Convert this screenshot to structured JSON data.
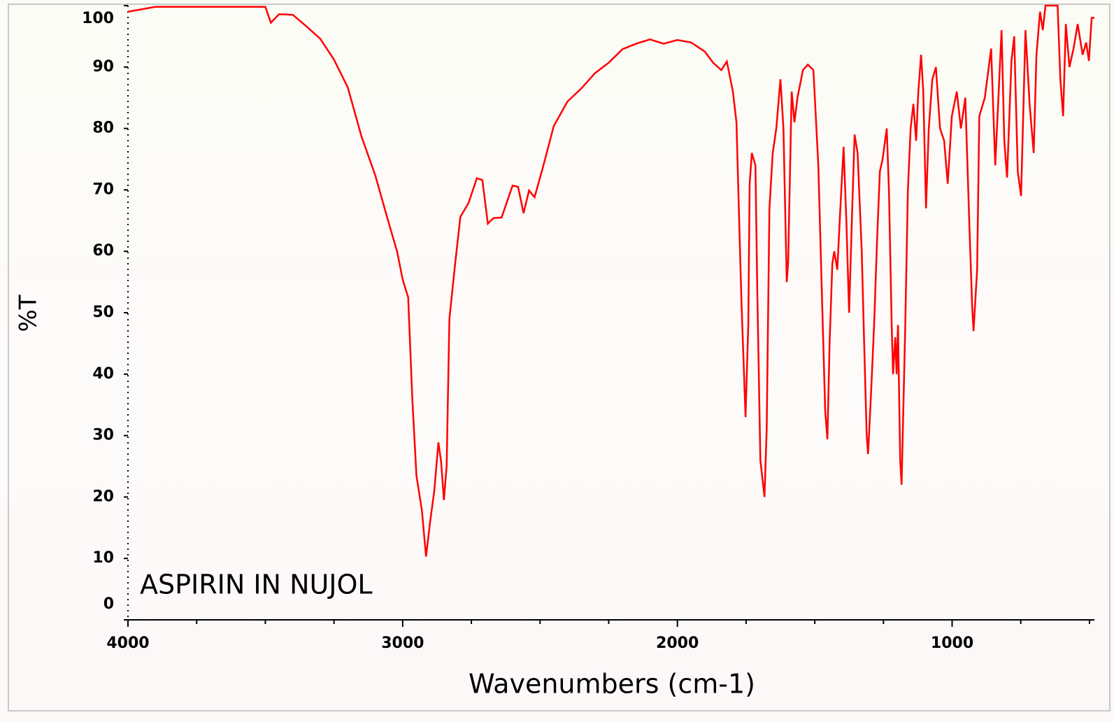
{
  "chart_data": {
    "type": "line",
    "annotation": "ASPIRIN IN NUJOL",
    "x_label": "Wavenumbers (cm-1)",
    "y_label": "%T",
    "xlim": [
      4000,
      482
    ],
    "ylim": [
      0,
      100
    ],
    "xticks": [
      4000,
      3000,
      2000,
      1000
    ],
    "xminorticks": [
      3750,
      3500,
      3250,
      2750,
      2500,
      2250,
      1750,
      1500,
      1250,
      750,
      500
    ],
    "yticks": [
      0,
      10,
      20,
      30,
      40,
      50,
      60,
      70,
      80,
      90,
      100
    ],
    "series": [
      {
        "color": "#ff0000",
        "x": [
          4000,
          3900,
          3500,
          3480,
          3450,
          3400,
          3350,
          3300,
          3250,
          3200,
          3150,
          3100,
          3050,
          3020,
          3000,
          2980,
          2965,
          2950,
          2930,
          2915,
          2900,
          2885,
          2870,
          2860,
          2850,
          2840,
          2830,
          2810,
          2790,
          2760,
          2730,
          2710,
          2690,
          2670,
          2640,
          2600,
          2580,
          2560,
          2540,
          2520,
          2490,
          2450,
          2400,
          2350,
          2300,
          2250,
          2200,
          2150,
          2100,
          2050,
          2000,
          1950,
          1900,
          1870,
          1840,
          1820,
          1798,
          1785,
          1777,
          1767,
          1752,
          1742,
          1737,
          1729,
          1716,
          1709,
          1698,
          1683,
          1675,
          1665,
          1653,
          1640,
          1625,
          1614,
          1602,
          1597,
          1584,
          1574,
          1563,
          1543,
          1525,
          1505,
          1487,
          1474,
          1462,
          1454,
          1446,
          1436,
          1429,
          1418,
          1408,
          1395,
          1385,
          1375,
          1365,
          1355,
          1344,
          1329,
          1322,
          1311,
          1306,
          1296,
          1284,
          1273,
          1263,
          1253,
          1238,
          1230,
          1220,
          1215,
          1207,
          1202,
          1197,
          1189,
          1184,
          1171,
          1161,
          1151,
          1141,
          1131,
          1123,
          1113,
          1105,
          1095,
          1085,
          1072,
          1059,
          1044,
          1029,
          1016,
          1001,
          983,
          968,
          952,
          937,
          927,
          922,
          909,
          901,
          881,
          858,
          843,
          820,
          810,
          800,
          784,
          774,
          761,
          749,
          733,
          718,
          703,
          693,
          680,
          670,
          660,
          616,
          606,
          596,
          586,
          573,
          558,
          543,
          525,
          512,
          502,
          492,
          482
        ],
        "values": [
          99,
          99.8,
          99.8,
          97.2,
          98.6,
          98.5,
          96.6,
          94.6,
          91.2,
          86.7,
          78.7,
          72.4,
          64.5,
          59.9,
          55.4,
          52.5,
          36,
          23.5,
          17.8,
          10.3,
          16,
          21,
          28.9,
          25.7,
          19.5,
          25,
          49,
          57.6,
          65.6,
          67.9,
          71.9,
          71.6,
          64.5,
          65.4,
          65.5,
          70.7,
          70.5,
          66.2,
          69.9,
          68.8,
          73.6,
          80.4,
          84.4,
          86.5,
          89,
          90.7,
          92.9,
          93.8,
          94.5,
          93.8,
          94.4,
          94,
          92.5,
          90.7,
          89.5,
          90.9,
          86,
          81,
          68,
          52,
          33,
          48,
          71,
          76,
          74,
          53,
          26,
          20,
          31,
          67,
          76,
          80,
          88,
          80,
          55,
          58,
          86,
          81,
          85,
          89.5,
          90.4,
          89.5,
          74,
          53,
          34,
          29.4,
          45,
          58,
          60,
          57,
          66,
          77,
          65,
          50,
          65,
          79,
          76,
          60,
          48,
          30,
          27,
          36,
          48,
          62,
          73,
          75,
          80,
          70,
          48,
          40,
          46,
          40,
          48,
          26,
          22,
          47,
          70,
          80,
          84,
          78,
          86,
          92,
          86,
          67,
          80,
          88,
          90,
          80,
          78,
          71,
          82,
          86,
          80,
          85,
          64,
          51,
          47,
          57,
          82,
          85,
          93,
          74,
          96,
          78,
          72,
          91,
          95,
          73,
          69,
          96,
          84,
          76,
          92,
          99,
          96,
          100,
          100,
          88,
          82,
          97,
          90,
          93,
          97,
          92,
          94,
          91,
          98,
          98
        ]
      }
    ]
  }
}
